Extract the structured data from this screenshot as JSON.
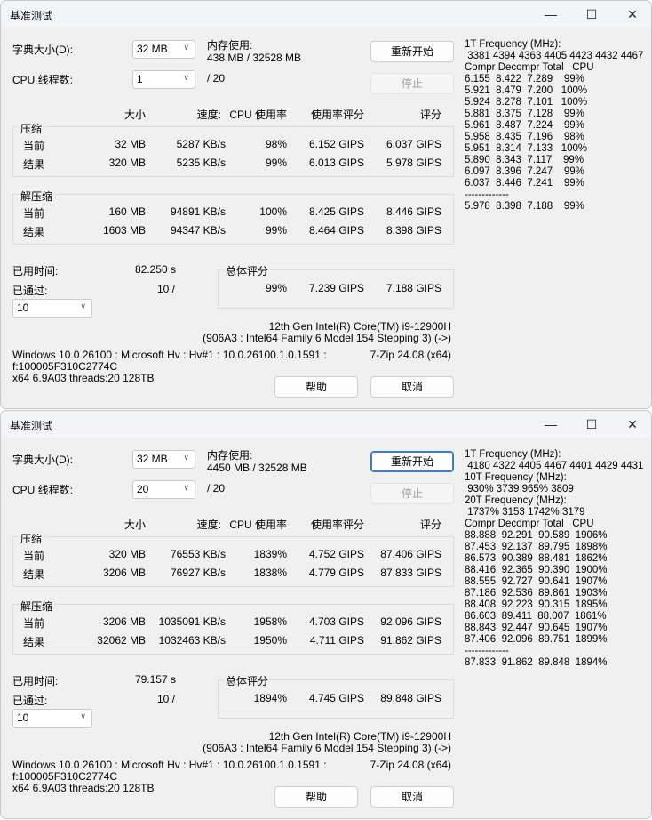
{
  "windows": [
    {
      "title": "基准测试",
      "dict_label": "字典大小(D):",
      "dict_value": "32 MB",
      "mem_label": "内存使用:",
      "mem_value": "438 MB / 32528 MB",
      "threads_label": "CPU 线程数:",
      "threads_value": "1",
      "threads_max": "/ 20",
      "restart_label": "重新开始",
      "stop_label": "停止",
      "headers": [
        "大小",
        "速度:",
        "CPU 使用率",
        "使用率评分",
        "评分"
      ],
      "compress": {
        "label": "压缩",
        "rows": [
          {
            "label": "当前",
            "size": "32 MB",
            "speed": "5287 KB/s",
            "cpu": "98%",
            "rating": "6.152 GIPS",
            "score": "6.037 GIPS"
          },
          {
            "label": "结果",
            "size": "320 MB",
            "speed": "5235 KB/s",
            "cpu": "99%",
            "rating": "6.013 GIPS",
            "score": "5.978 GIPS"
          }
        ]
      },
      "decompress": {
        "label": "解压缩",
        "rows": [
          {
            "label": "当前",
            "size": "160 MB",
            "speed": "94891 KB/s",
            "cpu": "100%",
            "rating": "8.425 GIPS",
            "score": "8.446 GIPS"
          },
          {
            "label": "结果",
            "size": "1603 MB",
            "speed": "94347 KB/s",
            "cpu": "99%",
            "rating": "8.464 GIPS",
            "score": "8.398 GIPS"
          }
        ]
      },
      "elapsed_label": "已用时间:",
      "elapsed_value": "82.250 s",
      "passed_label": "已通过:",
      "passed_value": "10 /",
      "passes_value": "10",
      "total": {
        "label": "总体评分",
        "cpu": "99%",
        "rating": "7.239 GIPS",
        "score": "7.188 GIPS"
      },
      "cpu_name": "12th Gen Intel(R) Core(TM) i9-12900H",
      "cpu_detail": "(906A3 : Intel64 Family 6 Model 154 Stepping 3) (->)",
      "os_line": "Windows 10.0 26100 : Microsoft Hv : Hv#1 : 10.0.26100.1.0.1591 :",
      "version": "7-Zip 24.08 (x64)",
      "f_line": "f:100005F310C2774C",
      "arch_line": "x64 6.9A03 threads:20 128TB",
      "help_label": "帮助",
      "cancel_label": "取消",
      "restart_focused": false,
      "log": [
        "1T Frequency (MHz):",
        " 3381 4394 4363 4405 4423 4432 4467",
        "Compr Decompr Total   CPU",
        "6.155  8.422  7.289    99%",
        "5.921  8.479  7.200   100%",
        "5.924  8.278  7.101   100%",
        "5.881  8.375  7.128    99%",
        "5.961  8.487  7.224    99%",
        "5.958  8.435  7.196    98%",
        "5.951  8.314  7.133   100%",
        "5.890  8.343  7.117    99%",
        "6.097  8.396  7.247    99%",
        "6.037  8.446  7.241    99%",
        "-------------",
        "5.978  8.398  7.188    99%"
      ]
    },
    {
      "title": "基准测试",
      "dict_label": "字典大小(D):",
      "dict_value": "32 MB",
      "mem_label": "内存使用:",
      "mem_value": "4450 MB / 32528 MB",
      "threads_label": "CPU 线程数:",
      "threads_value": "20",
      "threads_max": "/ 20",
      "restart_label": "重新开始",
      "stop_label": "停止",
      "headers": [
        "大小",
        "速度:",
        "CPU 使用率",
        "使用率评分",
        "评分"
      ],
      "compress": {
        "label": "压缩",
        "rows": [
          {
            "label": "当前",
            "size": "320 MB",
            "speed": "76553 KB/s",
            "cpu": "1839%",
            "rating": "4.752 GIPS",
            "score": "87.406 GIPS"
          },
          {
            "label": "结果",
            "size": "3206 MB",
            "speed": "76927 KB/s",
            "cpu": "1838%",
            "rating": "4.779 GIPS",
            "score": "87.833 GIPS"
          }
        ]
      },
      "decompress": {
        "label": "解压缩",
        "rows": [
          {
            "label": "当前",
            "size": "3206 MB",
            "speed": "1035091 KB/s",
            "cpu": "1958%",
            "rating": "4.703 GIPS",
            "score": "92.096 GIPS"
          },
          {
            "label": "结果",
            "size": "32062 MB",
            "speed": "1032463 KB/s",
            "cpu": "1950%",
            "rating": "4.711 GIPS",
            "score": "91.862 GIPS"
          }
        ]
      },
      "elapsed_label": "已用时间:",
      "elapsed_value": "79.157 s",
      "passed_label": "已通过:",
      "passed_value": "10 /",
      "passes_value": "10",
      "total": {
        "label": "总体评分",
        "cpu": "1894%",
        "rating": "4.745 GIPS",
        "score": "89.848 GIPS"
      },
      "cpu_name": "12th Gen Intel(R) Core(TM) i9-12900H",
      "cpu_detail": "(906A3 : Intel64 Family 6 Model 154 Stepping 3) (->)",
      "os_line": "Windows 10.0 26100 : Microsoft Hv : Hv#1 : 10.0.26100.1.0.1591 :",
      "version": "7-Zip 24.08 (x64)",
      "f_line": "f:100005F310C2774C",
      "arch_line": "x64 6.9A03 threads:20 128TB",
      "help_label": "帮助",
      "cancel_label": "取消",
      "restart_focused": true,
      "log": [
        "1T Frequency (MHz):",
        " 4180 4322 4405 4467 4401 4429 4431",
        "10T Frequency (MHz):",
        " 930% 3739 965% 3809",
        "20T Frequency (MHz):",
        " 1737% 3153 1742% 3179",
        "Compr Decompr Total   CPU",
        "88.888  92.291  90.589  1906%",
        "87.453  92.137  89.795  1898%",
        "86.573  90.389  88.481  1862%",
        "88.416  92.365  90.390  1900%",
        "88.555  92.727  90.641  1907%",
        "87.186  92.536  89.861  1903%",
        "88.408  92.223  90.315  1895%",
        "86.603  89.411  88.007  1861%",
        "88.843  92.447  90.645  1907%",
        "87.406  92.096  89.751  1899%",
        "-------------",
        "87.833  91.862  89.848  1894%"
      ]
    }
  ],
  "icons": {
    "minimize": "minimize-icon",
    "maximize": "maximize-icon",
    "close": "close-icon",
    "dropdown": "chevron-down-icon"
  }
}
